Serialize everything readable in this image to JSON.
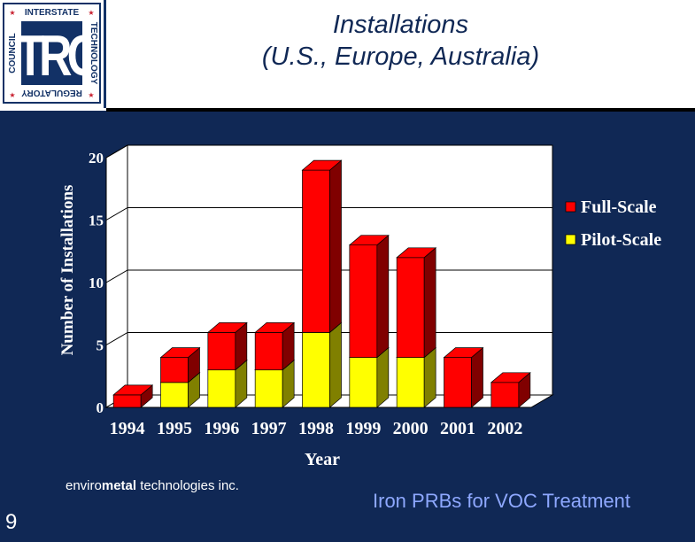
{
  "header": {
    "title_line1": "Installations",
    "title_line2": "(U.S., Europe, Australia)"
  },
  "logo": {
    "acronym": "ITRC",
    "ring_top": "INTERSTATE",
    "ring_right": "TECHNOLOGY",
    "ring_bottom": "REGULATORY",
    "ring_left": "COUNCIL"
  },
  "chart_data": {
    "type": "bar",
    "stacked": true,
    "title": "",
    "xlabel": "Year",
    "ylabel": "Number of Installations",
    "ylim": [
      0,
      20
    ],
    "yticks": [
      0,
      5,
      10,
      15,
      20
    ],
    "categories": [
      "1994",
      "1995",
      "1996",
      "1997",
      "1998",
      "1999",
      "2000",
      "2001",
      "2002"
    ],
    "series": [
      {
        "name": "Pilot-Scale",
        "values": [
          0,
          2,
          3,
          3,
          6,
          4,
          4,
          0,
          0
        ],
        "color": "#ffff00",
        "side_color": "#808000"
      },
      {
        "name": "Full-Scale",
        "values": [
          1,
          2,
          3,
          3,
          13,
          9,
          8,
          4,
          2
        ],
        "color": "#ff0000",
        "side_color": "#800000"
      }
    ],
    "legend_order": [
      "Full-Scale",
      "Pilot-Scale"
    ],
    "legend_position": "right",
    "grid": true
  },
  "footer": {
    "credit_prefix": "enviro",
    "credit_bold": "metal",
    "credit_suffix": " technologies inc.",
    "caption": "Iron PRBs for VOC Treatment",
    "page_number": "9"
  },
  "colors": {
    "background": "#102855",
    "title": "#102855",
    "caption": "#8ea8ff",
    "logo_red": "#c8202f",
    "logo_blue": "#123166"
  }
}
